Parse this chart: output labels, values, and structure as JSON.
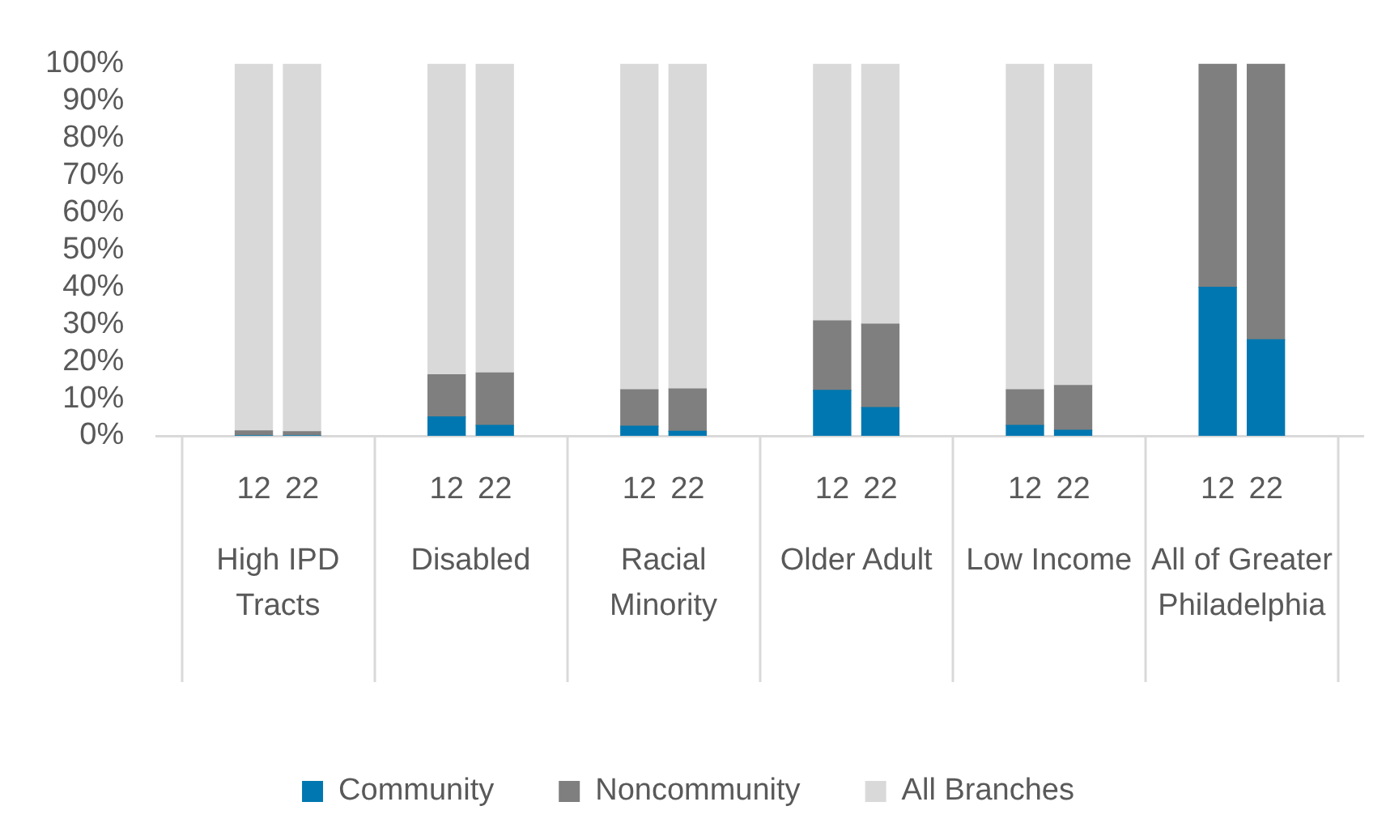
{
  "chart_data": {
    "type": "bar",
    "stacked": true,
    "categories": [
      null,
      "12",
      "22",
      null,
      null,
      "12",
      "22",
      null,
      null,
      "12",
      "22",
      null,
      null,
      "12",
      "22",
      null,
      null,
      "12",
      "22",
      null,
      null,
      "12",
      "22",
      null
    ],
    "annotations": [
      "High IPD Tracts",
      "Disabled",
      "Racial Minority",
      "Older Adult",
      "Low Income",
      "All of Greater Philadelphia"
    ],
    "series": [
      {
        "name": "Community",
        "color": "#0077b0",
        "values": [
          null,
          0,
          0,
          null,
          null,
          5.1,
          2.8,
          null,
          null,
          2.6,
          1.2,
          null,
          null,
          12.2,
          7.6,
          null,
          null,
          2.8,
          1.5,
          null,
          null,
          39.9,
          25.8,
          null
        ]
      },
      {
        "name": "Noncommunity",
        "color": "#7f7f7f",
        "values": [
          null,
          1.3,
          1.1,
          null,
          null,
          11.3,
          14.1,
          null,
          null,
          9.8,
          11.4,
          null,
          null,
          18.7,
          22.4,
          null,
          null,
          9.6,
          12.0,
          null,
          null,
          60.1,
          74.2,
          null
        ]
      },
      {
        "name": "All Branches",
        "color": "#d9d9d9",
        "values": [
          null,
          98.7,
          98.9,
          null,
          null,
          83.6,
          83.1,
          null,
          null,
          87.6,
          87.4,
          null,
          null,
          69.1,
          70.0,
          null,
          null,
          87.6,
          86.5,
          null,
          null,
          0,
          0,
          null
        ]
      }
    ],
    "ylim": [
      0,
      100
    ],
    "yticks": [
      {
        "value": 0,
        "label": "0%"
      },
      {
        "value": 10,
        "label": "10%"
      },
      {
        "value": 20,
        "label": "20%"
      },
      {
        "value": 30,
        "label": "30%"
      },
      {
        "value": 40,
        "label": "40%"
      },
      {
        "value": 50,
        "label": "50%"
      },
      {
        "value": 60,
        "label": "60%"
      },
      {
        "value": 70,
        "label": "70%"
      },
      {
        "value": 80,
        "label": "80%"
      },
      {
        "value": 90,
        "label": "90%"
      },
      {
        "value": 100,
        "label": "100%"
      }
    ],
    "grid": false,
    "legend": "bottom"
  }
}
